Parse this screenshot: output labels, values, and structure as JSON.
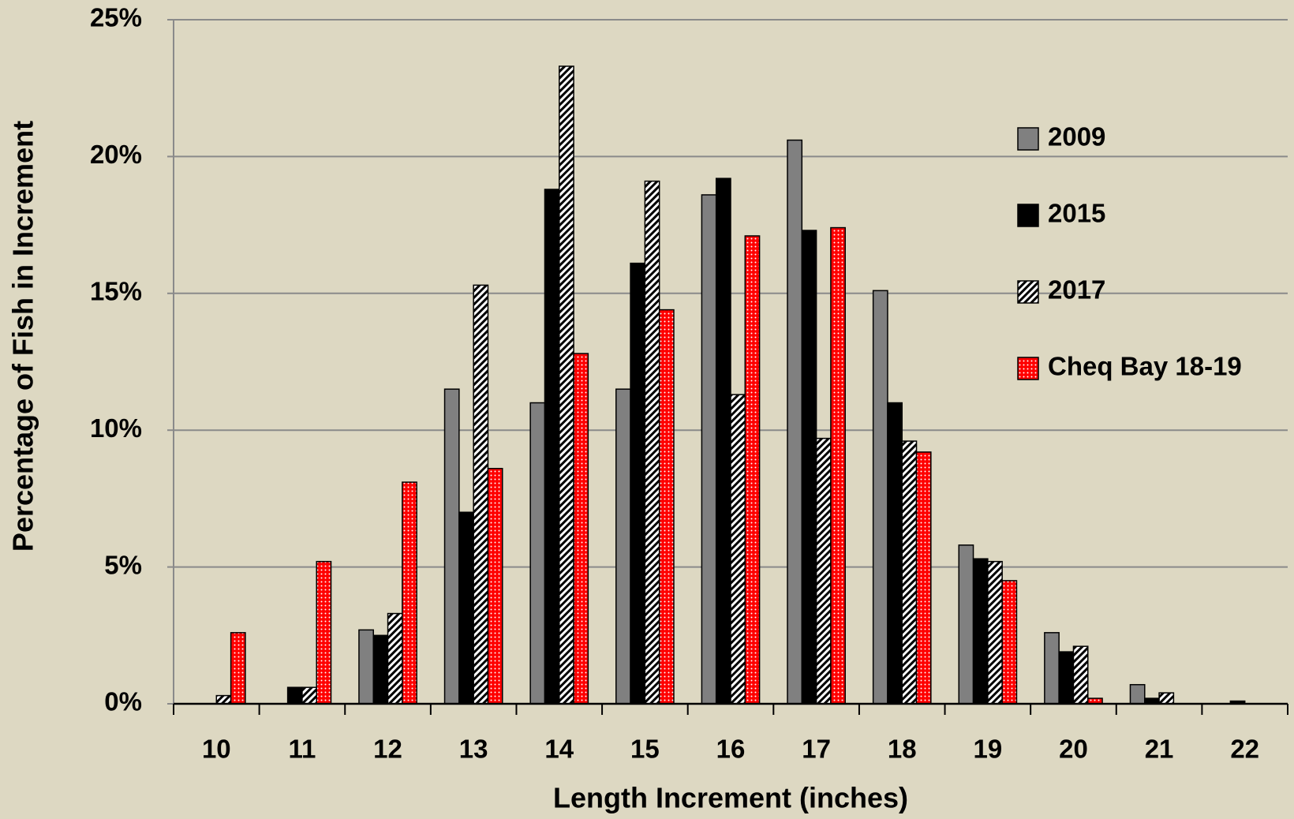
{
  "chart_data": {
    "type": "bar",
    "x_label": "Length Increment (inches)",
    "y_label": "Percentage of Fish in Increment",
    "categories": [
      "10",
      "11",
      "12",
      "13",
      "14",
      "15",
      "16",
      "17",
      "18",
      "19",
      "20",
      "21",
      "22"
    ],
    "series": [
      {
        "name": "2009",
        "color": "#808080",
        "values": [
          0,
          0,
          2.7,
          11.5,
          11.0,
          11.5,
          18.6,
          20.6,
          15.1,
          5.8,
          2.6,
          0.7,
          0
        ]
      },
      {
        "name": "2015",
        "color": "#000000",
        "values": [
          0,
          0.6,
          2.5,
          7.0,
          18.8,
          16.1,
          19.2,
          17.3,
          11.0,
          5.3,
          1.9,
          0.2,
          0.1
        ]
      },
      {
        "name": "2017",
        "color": "#000000",
        "pattern": "hatch",
        "values": [
          0.3,
          0.6,
          3.3,
          15.3,
          23.3,
          19.1,
          11.3,
          9.7,
          9.6,
          5.2,
          2.1,
          0.4,
          0
        ]
      },
      {
        "name": "Cheq Bay 18-19",
        "color": "#ff0000",
        "pattern": "dots",
        "values": [
          2.6,
          5.2,
          8.1,
          8.6,
          12.8,
          14.4,
          17.1,
          17.4,
          9.2,
          4.5,
          0.2,
          0,
          0
        ]
      }
    ],
    "ylim": [
      0,
      25
    ],
    "yticks": [
      {
        "value": 0,
        "label": "0%"
      },
      {
        "value": 5,
        "label": "5%"
      },
      {
        "value": 10,
        "label": "10%"
      },
      {
        "value": 15,
        "label": "15%"
      },
      {
        "value": 20,
        "label": "20%"
      },
      {
        "value": 25,
        "label": "25%"
      }
    ],
    "grid": true,
    "legend": "right"
  }
}
